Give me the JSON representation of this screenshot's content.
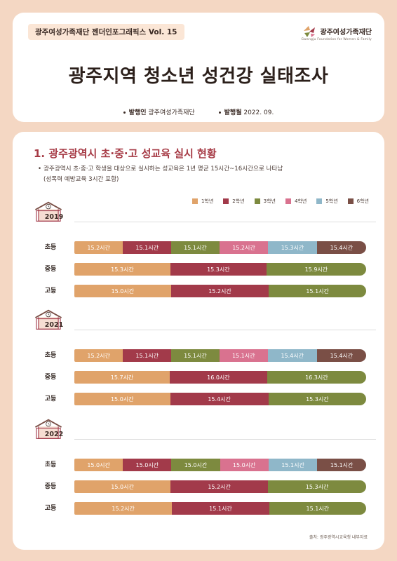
{
  "header": {
    "series": "광주여성가족재단 젠더인포그래픽스 Vol. 15",
    "logo_text": "광주여성가족재단",
    "logo_sub": "Gwangju Foundation for Women & Family",
    "title": "광주지역 청소년 성건강 실태조사",
    "publisher_label": "발행인",
    "publisher": "광주여성가족재단",
    "date_label": "발행월",
    "date": "2022. 09."
  },
  "section": {
    "title": "1. 광주광역시 초·중·고 성교육 실시 현황",
    "desc_line1": "광주광역시 초·중·고 학생을 대상으로 실시하는 성교육은 1년 평균 15시간~16시간으로 나타남",
    "desc_line2": "(성폭력 예방교육 3시간 포함)"
  },
  "source": "출처: 광주광역시교육청 내부자료",
  "colors": {
    "g1": "#e0a36a",
    "g2": "#a23a4a",
    "g3": "#7d8a3f",
    "g4": "#d9728f",
    "g5": "#8fb7c9",
    "g6": "#7a4f46"
  },
  "chart_data": {
    "type": "bar",
    "unit": "시간",
    "legend": [
      "1학년",
      "2학년",
      "3학년",
      "4학년",
      "5학년",
      "6학년"
    ],
    "levels": [
      "초등",
      "중등",
      "고등"
    ],
    "years": [
      {
        "year": "2019",
        "rows": [
          {
            "level": "초등",
            "values": [
              15.2,
              15.1,
              15.1,
              15.2,
              15.3,
              15.4
            ],
            "labels": [
              "15.2시간",
              "15.1시간",
              "15.1시간",
              "15.2시간",
              "15.3시간",
              "15.4시간"
            ]
          },
          {
            "level": "중등",
            "values": [
              15.3,
              15.3,
              15.9
            ],
            "labels": [
              "15.3시간",
              "15.3시간",
              "15.9시간"
            ]
          },
          {
            "level": "고등",
            "values": [
              15.0,
              15.2,
              15.1
            ],
            "labels": [
              "15.0시간",
              "15.2시간",
              "15.1시간"
            ]
          }
        ]
      },
      {
        "year": "2021",
        "rows": [
          {
            "level": "초등",
            "values": [
              15.2,
              15.1,
              15.1,
              15.1,
              15.4,
              15.4
            ],
            "labels": [
              "15.2시간",
              "15.1시간",
              "15.1시간",
              "15.1시간",
              "15.4시간",
              "15.4시간"
            ]
          },
          {
            "level": "중등",
            "values": [
              15.7,
              16.0,
              16.3
            ],
            "labels": [
              "15.7시간",
              "16.0시간",
              "16.3시간"
            ]
          },
          {
            "level": "고등",
            "values": [
              15.0,
              15.4,
              15.3
            ],
            "labels": [
              "15.0시간",
              "15.4시간",
              "15.3시간"
            ]
          }
        ]
      },
      {
        "year": "2022",
        "rows": [
          {
            "level": "초등",
            "values": [
              15.0,
              15.0,
              15.0,
              15.0,
              15.1,
              15.1
            ],
            "labels": [
              "15.0시간",
              "15.0시간",
              "15.0시간",
              "15.0시간",
              "15.1시간",
              "15.1시간"
            ]
          },
          {
            "level": "중등",
            "values": [
              15.0,
              15.2,
              15.3
            ],
            "labels": [
              "15.0시간",
              "15.2시간",
              "15.3시간"
            ]
          },
          {
            "level": "고등",
            "values": [
              15.2,
              15.1,
              15.1
            ],
            "labels": [
              "15.2시간",
              "15.1시간",
              "15.1시간"
            ]
          }
        ]
      }
    ]
  }
}
